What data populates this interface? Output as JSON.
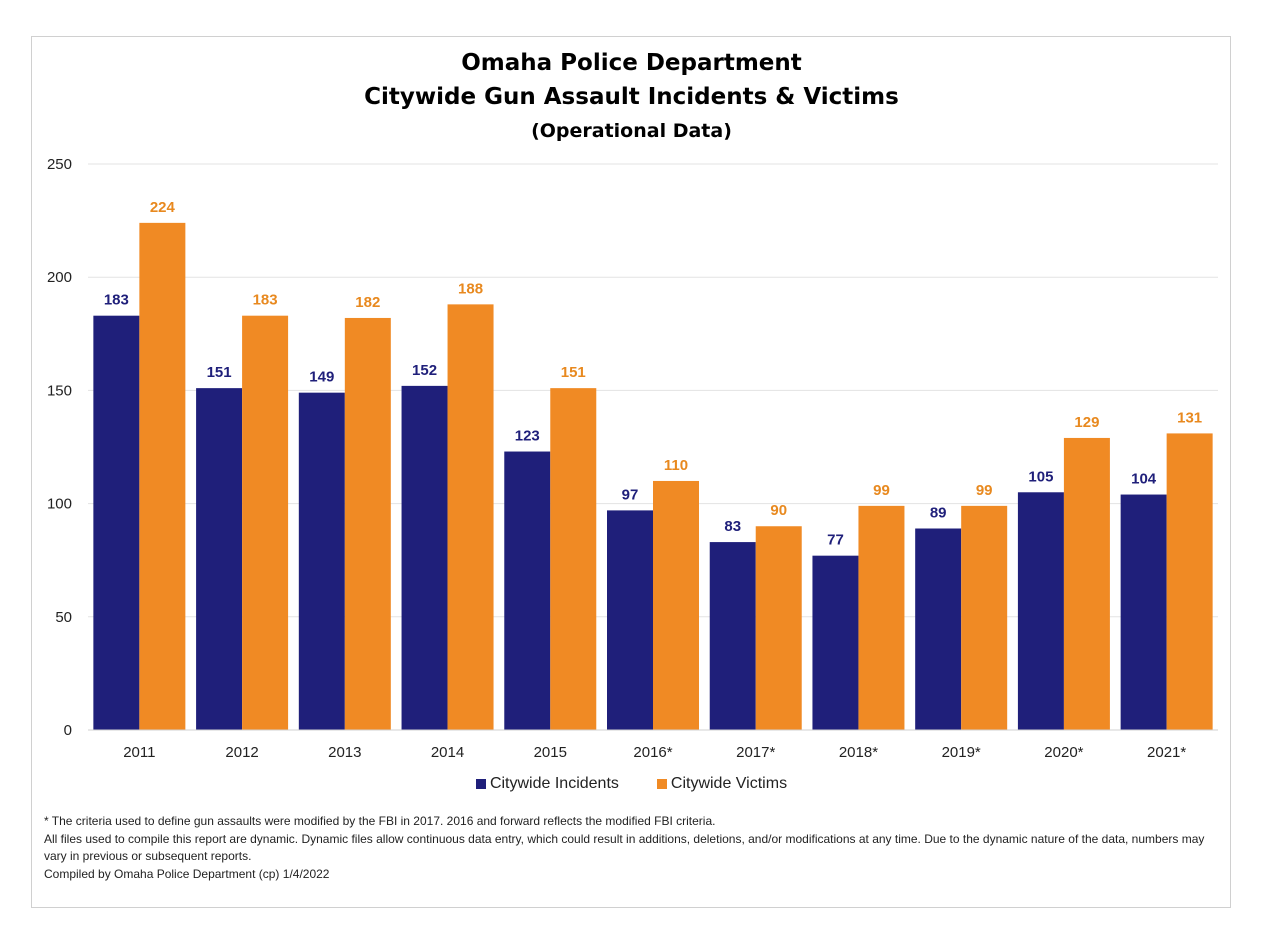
{
  "chart_data": {
    "type": "bar",
    "title": "Omaha Police Department",
    "title_line2": "Citywide Gun Assault Incidents & Victims",
    "subtitle": "(Operational Data)",
    "categories": [
      "2011",
      "2012",
      "2013",
      "2014",
      "2015",
      "2016*",
      "2017*",
      "2018*",
      "2019*",
      "2020*",
      "2021*"
    ],
    "series": [
      {
        "name": "Citywide Incidents",
        "color": "#1f1f7a",
        "label_color": "#1f1f7a",
        "values": [
          183,
          151,
          149,
          152,
          123,
          97,
          83,
          77,
          89,
          105,
          104
        ]
      },
      {
        "name": "Citywide Victims",
        "color": "#f08a24",
        "label_color": "#e8891f",
        "values": [
          224,
          183,
          182,
          188,
          151,
          110,
          90,
          99,
          99,
          129,
          131
        ]
      }
    ],
    "ylim": [
      0,
      250
    ],
    "yticks": [
      0,
      50,
      100,
      150,
      200,
      250
    ],
    "xlabel": "",
    "ylabel": "",
    "grid": true,
    "legend_position": "bottom",
    "data_labels": true
  },
  "footnotes": {
    "line1": "* The criteria used to define gun assaults were modified by the FBI in 2017.  2016 and forward reflects the modified FBI criteria.",
    "line2": "All files used to compile this report are dynamic. Dynamic files allow continuous data entry, which could result in additions, deletions, and/or modifications at any time. Due to the dynamic nature of the data, numbers may vary in previous or subsequent reports.",
    "line3": "Compiled by Omaha Police Department (cp) 1/4/2022"
  }
}
